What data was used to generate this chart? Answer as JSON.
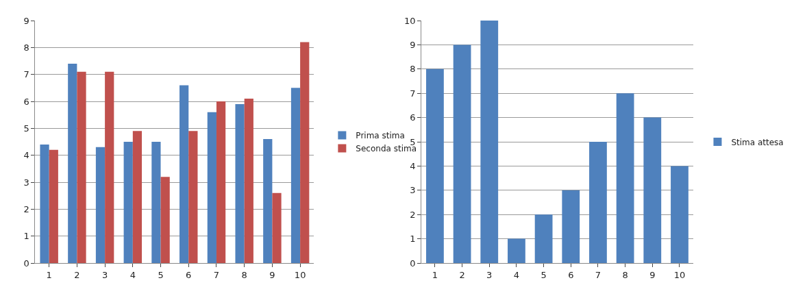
{
  "chart_data": [
    {
      "type": "bar",
      "categories": [
        "1",
        "2",
        "3",
        "4",
        "5",
        "6",
        "7",
        "8",
        "9",
        "10"
      ],
      "ylim": [
        0,
        9
      ],
      "yticks": [
        0,
        1,
        2,
        3,
        4,
        5,
        6,
        7,
        8,
        9
      ],
      "grid": "y",
      "legend": "right",
      "series": [
        {
          "name": "Prima stima",
          "color": "#4f81bd",
          "values": [
            4.4,
            7.4,
            4.3,
            4.5,
            4.5,
            6.6,
            5.6,
            5.9,
            4.6,
            6.5
          ]
        },
        {
          "name": "Seconda stima",
          "color": "#c0504d",
          "values": [
            4.2,
            7.1,
            7.1,
            4.9,
            3.2,
            4.9,
            6.0,
            6.1,
            2.6,
            8.2
          ]
        }
      ]
    },
    {
      "type": "bar",
      "categories": [
        "1",
        "2",
        "3",
        "4",
        "5",
        "6",
        "7",
        "8",
        "9",
        "10"
      ],
      "ylim": [
        0,
        10
      ],
      "yticks": [
        0,
        1,
        2,
        3,
        4,
        5,
        6,
        7,
        8,
        9,
        10
      ],
      "grid": "y",
      "legend": "right",
      "series": [
        {
          "name": "Stima attesa",
          "color": "#4f81bd",
          "values": [
            8,
            9,
            10,
            1,
            2,
            3,
            5,
            7,
            6,
            4
          ]
        }
      ]
    }
  ]
}
